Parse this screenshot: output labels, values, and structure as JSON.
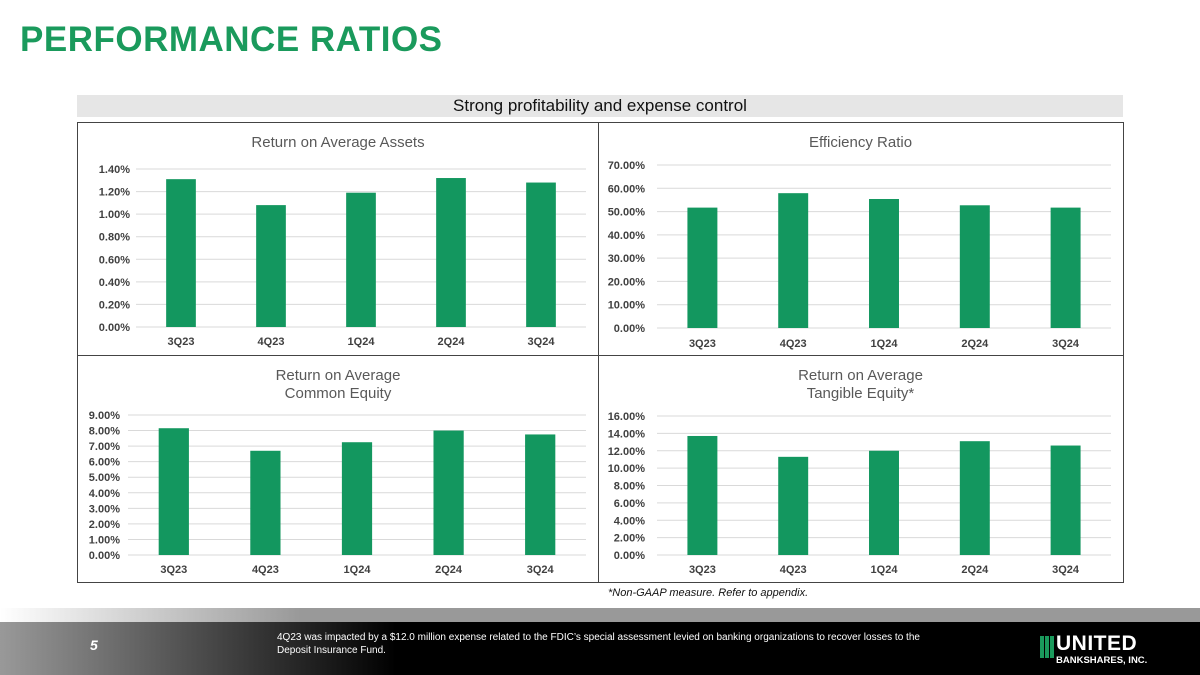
{
  "title": "PERFORMANCE RATIOS",
  "subtitle": "Strong profitability and expense control",
  "note": "*Non-GAAP measure.  Refer to appendix.",
  "footer": {
    "page": "5",
    "text": "4Q23 was impacted by a $12.0 million expense related to the FDIC’s special assessment levied on banking organizations to recover losses to the Deposit Insurance Fund.",
    "logo_top": "UNITED",
    "logo_bottom": "BANKSHARES, INC."
  },
  "colors": {
    "brand": "#1a9a5c",
    "bar": "#13975f"
  },
  "chart_data": [
    {
      "type": "bar",
      "title": [
        "Return on Average Assets"
      ],
      "categories": [
        "3Q23",
        "4Q23",
        "1Q24",
        "2Q24",
        "3Q24"
      ],
      "values": [
        1.31,
        1.08,
        1.19,
        1.32,
        1.28
      ],
      "ylim": [
        0,
        1.4
      ],
      "ticks": [
        "0.00%",
        "0.20%",
        "0.40%",
        "0.60%",
        "0.80%",
        "1.00%",
        "1.20%",
        "1.40%"
      ],
      "grid": true
    },
    {
      "type": "bar",
      "title": [
        "Efficiency Ratio"
      ],
      "categories": [
        "3Q23",
        "4Q23",
        "1Q24",
        "2Q24",
        "3Q24"
      ],
      "values": [
        51.7,
        57.9,
        55.4,
        52.7,
        51.7
      ],
      "ylim": [
        0,
        70
      ],
      "ticks": [
        "0.00%",
        "10.00%",
        "20.00%",
        "30.00%",
        "40.00%",
        "50.00%",
        "60.00%",
        "70.00%"
      ],
      "grid": true
    },
    {
      "type": "bar",
      "title": [
        "Return on Average",
        "Common Equity"
      ],
      "categories": [
        "3Q23",
        "4Q23",
        "1Q24",
        "2Q24",
        "3Q24"
      ],
      "values": [
        8.15,
        6.7,
        7.25,
        8.0,
        7.75
      ],
      "ylim": [
        0,
        9
      ],
      "ticks": [
        "0.00%",
        "1.00%",
        "2.00%",
        "3.00%",
        "4.00%",
        "5.00%",
        "6.00%",
        "7.00%",
        "8.00%",
        "9.00%"
      ],
      "grid": true
    },
    {
      "type": "bar",
      "title": [
        "Return on Average",
        "Tangible Equity*"
      ],
      "categories": [
        "3Q23",
        "4Q23",
        "1Q24",
        "2Q24",
        "3Q24"
      ],
      "values": [
        13.7,
        11.3,
        12.0,
        13.1,
        12.6
      ],
      "ylim": [
        0,
        16
      ],
      "ticks": [
        "0.00%",
        "2.00%",
        "4.00%",
        "6.00%",
        "8.00%",
        "10.00%",
        "12.00%",
        "14.00%",
        "16.00%"
      ],
      "grid": true
    }
  ]
}
